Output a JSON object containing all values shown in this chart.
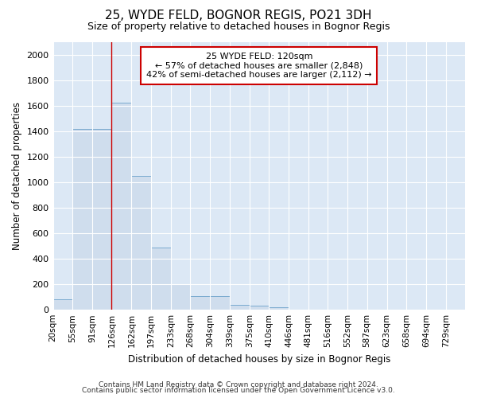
{
  "title": "25, WYDE FELD, BOGNOR REGIS, PO21 3DH",
  "subtitle": "Size of property relative to detached houses in Bognor Regis",
  "xlabel": "Distribution of detached houses by size in Bognor Regis",
  "ylabel": "Number of detached properties",
  "footnote1": "Contains HM Land Registry data © Crown copyright and database right 2024.",
  "footnote2": "Contains public sector information licensed under the Open Government Licence v3.0.",
  "bar_edges": [
    20,
    55,
    91,
    126,
    162,
    197,
    233,
    268,
    304,
    339,
    375,
    410,
    446,
    481,
    516,
    552,
    587,
    623,
    658,
    694,
    729
  ],
  "bar_heights": [
    80,
    1420,
    1420,
    1620,
    1050,
    490,
    200,
    110,
    110,
    40,
    30,
    20,
    0,
    0,
    0,
    0,
    0,
    0,
    0,
    0,
    0
  ],
  "bar_color": "#cfdded",
  "bar_edge_color": "#7aaad0",
  "bg_color": "#dce8f5",
  "grid_color": "#ffffff",
  "red_line_x": 126,
  "ylim": [
    0,
    2100
  ],
  "yticks": [
    0,
    200,
    400,
    600,
    800,
    1000,
    1200,
    1400,
    1600,
    1800,
    2000
  ],
  "annotation_title": "25 WYDE FELD: 120sqm",
  "annotation_line1": "← 57% of detached houses are smaller (2,848)",
  "annotation_line2": "42% of semi-detached houses are larger (2,112) →",
  "annotation_box_color": "#ffffff",
  "annotation_border_color": "#cc0000",
  "tick_labels": [
    "20sqm",
    "55sqm",
    "91sqm",
    "126sqm",
    "162sqm",
    "197sqm",
    "233sqm",
    "268sqm",
    "304sqm",
    "339sqm",
    "375sqm",
    "410sqm",
    "446sqm",
    "481sqm",
    "516sqm",
    "552sqm",
    "587sqm",
    "623sqm",
    "658sqm",
    "694sqm",
    "729sqm"
  ]
}
